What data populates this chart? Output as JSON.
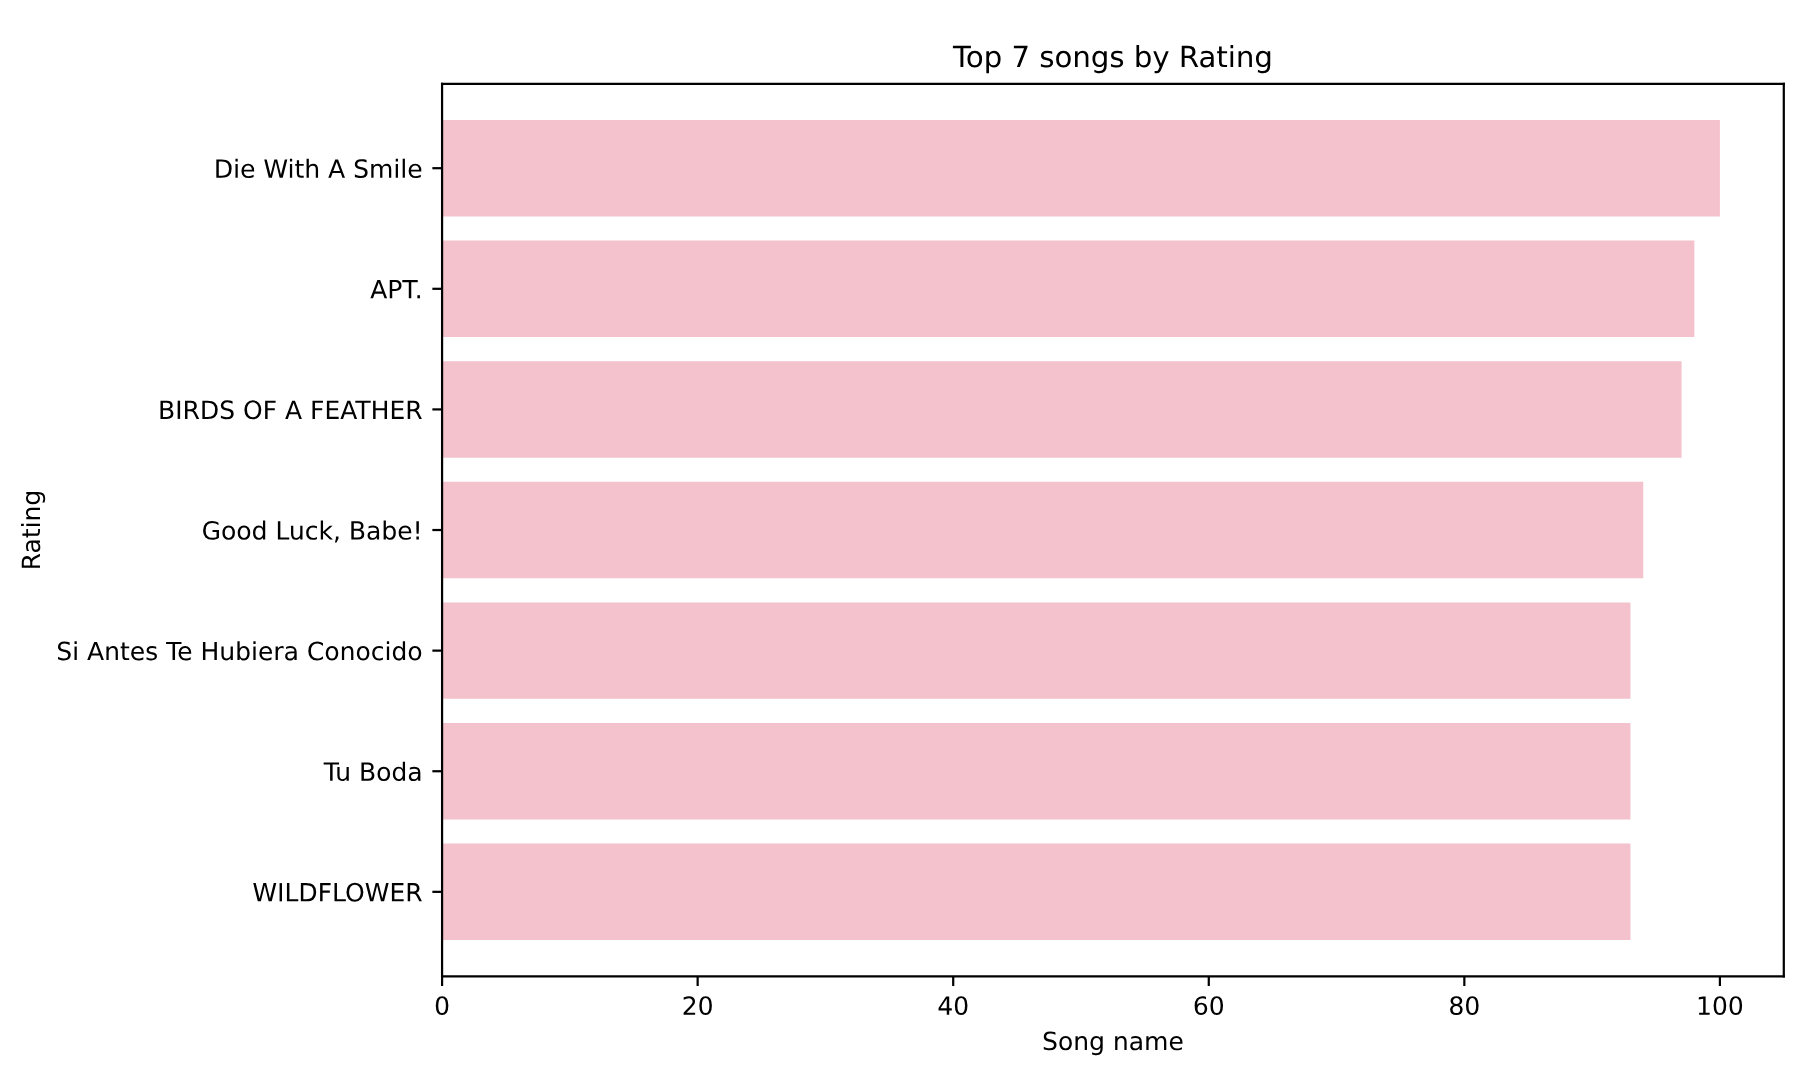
{
  "chart_data": {
    "type": "bar",
    "orientation": "horizontal",
    "title": "Top 7 songs by Rating",
    "xlabel": "Song name",
    "ylabel": "Rating",
    "categories": [
      "Die With A Smile",
      "APT.",
      "BIRDS OF A FEATHER",
      "Good Luck, Babe!",
      "Si Antes Te Hubiera Conocido",
      "Tu Boda",
      "WILDFLOWER"
    ],
    "values": [
      100,
      98,
      97,
      94,
      93,
      93,
      93
    ],
    "color": "#f4c2cc",
    "xlim": [
      0,
      105
    ],
    "xticks": [
      0,
      20,
      40,
      60,
      80,
      100
    ],
    "grid": false,
    "legend": false
  }
}
